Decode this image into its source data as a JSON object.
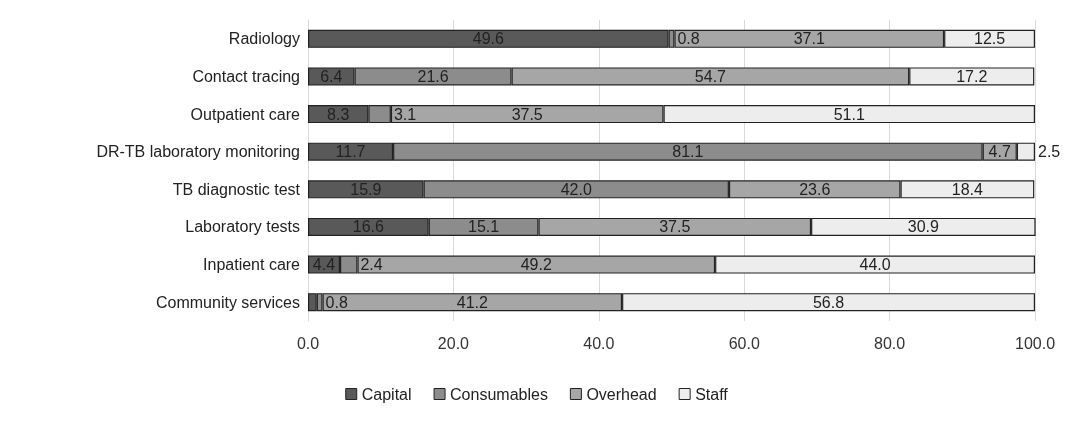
{
  "chart_data": {
    "type": "bar",
    "orientation": "horizontal",
    "stacked": true,
    "categories": [
      "Radiology",
      "Contact tracing",
      "Outpatient care",
      "DR-TB laboratory monitoring",
      "TB diagnostic test",
      "Laboratory tests",
      "Inpatient care",
      "Community services"
    ],
    "series": [
      {
        "name": "Capital",
        "color": "#595959",
        "values": [
          49.6,
          6.4,
          8.3,
          11.7,
          15.9,
          16.6,
          4.4,
          1.2
        ],
        "value_labels": [
          "49.6",
          "6.4",
          "8.3",
          "11.7",
          "15.9",
          "16.6",
          "4.4",
          null
        ]
      },
      {
        "name": "Consumables",
        "color": "#8c8c8c",
        "values": [
          0.8,
          21.6,
          3.1,
          81.1,
          42.0,
          15.1,
          2.4,
          0.8
        ],
        "value_labels": [
          "0.8",
          "21.6",
          "3.1",
          "81.1",
          "42.0",
          "15.1",
          "2.4",
          "0.8"
        ]
      },
      {
        "name": "Overhead",
        "color": "#a6a6a6",
        "values": [
          37.1,
          54.7,
          37.5,
          4.7,
          23.6,
          37.5,
          49.2,
          41.2
        ],
        "value_labels": [
          "37.1",
          "54.7",
          "37.5",
          "4.7",
          "23.6",
          "37.5",
          "49.2",
          "41.2"
        ]
      },
      {
        "name": "Staff",
        "color": "#ededed",
        "values": [
          12.5,
          17.2,
          51.1,
          2.5,
          18.4,
          30.9,
          44.0,
          56.8
        ],
        "value_labels": [
          "12.5",
          "17.2",
          "51.1",
          "2.5",
          "18.4",
          "30.9",
          "44.0",
          "56.8"
        ]
      }
    ],
    "xlim": [
      0,
      100
    ],
    "xticks": [
      {
        "value": 0,
        "label": "0.0"
      },
      {
        "value": 20,
        "label": "20.0"
      },
      {
        "value": 40,
        "label": "40.0"
      },
      {
        "value": 60,
        "label": "60.0"
      },
      {
        "value": 80,
        "label": "80.0"
      },
      {
        "value": 100,
        "label": "100.0"
      }
    ],
    "grid": "x",
    "legend": "bottom"
  }
}
